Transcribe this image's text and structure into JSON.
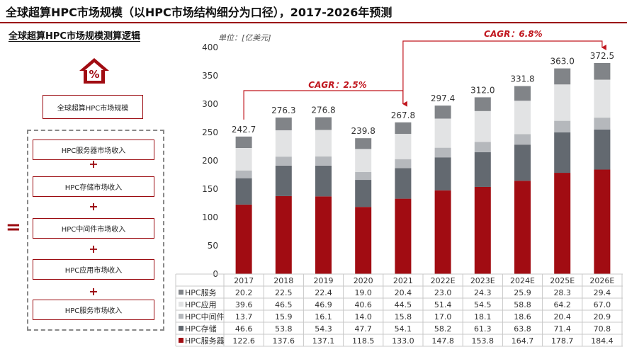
{
  "title": "全球超算HPC市场规模（以HPC市场结构细分为口径），2017-2026年预测",
  "subtitle": "全球超算HPC市场规模测算逻辑",
  "logic": {
    "total_label": "全球超算HPC市场规模",
    "equals": "=",
    "plus": "+",
    "components": [
      "HPC服务器市场收入",
      "HPC存储市场收入",
      "HPC中间件市场收入",
      "HPC应用市场收入",
      "HPC服务市场收入"
    ]
  },
  "chart_data": {
    "type": "bar",
    "stacked": true,
    "unit_label": "单位：[亿美元]",
    "categories": [
      "2017",
      "2018",
      "2019",
      "2020",
      "2021",
      "2022E",
      "2023E",
      "2024E",
      "2025E",
      "2026E"
    ],
    "ylim": [
      0,
      400
    ],
    "yticks": [
      0,
      50,
      100,
      150,
      200,
      250,
      300,
      350,
      400
    ],
    "series": [
      {
        "name": "HPC服务器",
        "color": "#a10c12",
        "values": [
          122.6,
          137.6,
          137.1,
          118.5,
          133.0,
          147.8,
          153.8,
          164.7,
          178.7,
          184.4
        ]
      },
      {
        "name": "HPC存储",
        "color": "#636970",
        "values": [
          46.6,
          53.8,
          54.3,
          47.7,
          54.1,
          58.2,
          61.3,
          63.8,
          71.4,
          70.8
        ]
      },
      {
        "name": "HPC中间件",
        "color": "#b5b8bc",
        "values": [
          13.7,
          15.9,
          16.1,
          14.0,
          15.8,
          17.0,
          18.1,
          18.6,
          20.4,
          20.9
        ]
      },
      {
        "name": "HPC应用",
        "color": "#e2e3e4",
        "values": [
          39.6,
          46.5,
          46.9,
          40.6,
          44.5,
          51.4,
          54.5,
          58.8,
          64.2,
          67.0
        ]
      },
      {
        "name": "HPC服务",
        "color": "#818488",
        "values": [
          20.2,
          22.5,
          22.4,
          19.0,
          20.4,
          23.0,
          24.3,
          25.9,
          28.3,
          29.4
        ]
      }
    ],
    "totals": [
      "242.7",
      "276.3",
      "276.8",
      "239.8",
      "267.8",
      "297.4",
      "312.0",
      "331.8",
      "363.0",
      "372.5"
    ],
    "table_rows_order": [
      "HPC服务",
      "HPC应用",
      "HPC中间件",
      "HPC存储",
      "HPC服务器"
    ],
    "annotations": [
      {
        "text": "CAGR：2.5%",
        "from": "2017",
        "to": "2021"
      },
      {
        "text": "CAGR：6.8%",
        "from": "2021",
        "to": "2026E"
      }
    ],
    "grid": false,
    "legend": "table-bottom"
  },
  "colors": {
    "accent": "#9b0a10",
    "annotation": "#c0161e"
  }
}
